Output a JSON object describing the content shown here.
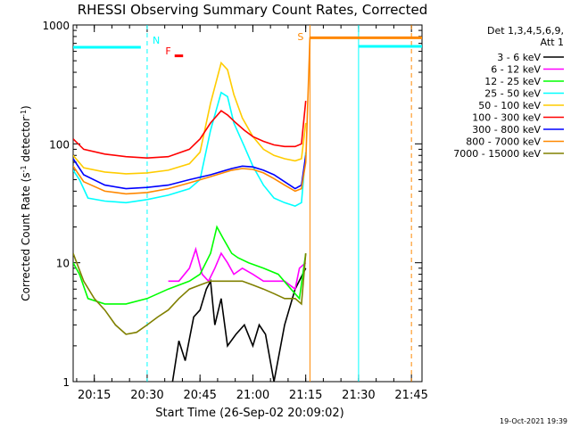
{
  "chart_data": {
    "type": "line",
    "title": "RHESSI Observing Summary Count Rates, Corrected",
    "xlabel": "Start Time (26-Sep-02 20:09:02)",
    "ylabel_main": "Corrected Count Rate (s",
    "ylabel_sup1": "-1",
    "ylabel_mid": " detector",
    "ylabel_sup2": "-1",
    "ylabel_end": ")",
    "yscale": "log",
    "ylim": [
      1,
      1000
    ],
    "xlim": [
      20.15,
      21.8
    ],
    "x_ticks": [
      {
        "label": "20:15",
        "value": 20.25
      },
      {
        "label": "20:30",
        "value": 20.5
      },
      {
        "label": "20:45",
        "value": 20.75
      },
      {
        "label": "21:00",
        "value": 21.0
      },
      {
        "label": "21:15",
        "value": 21.25
      },
      {
        "label": "21:30",
        "value": 21.5
      },
      {
        "label": "21:45",
        "value": 21.75
      }
    ],
    "y_ticks": [
      {
        "label": "1",
        "value": 1
      },
      {
        "label": "10",
        "value": 10
      },
      {
        "label": "100",
        "value": 100
      },
      {
        "label": "1000",
        "value": 1000
      }
    ],
    "legend_header": [
      "Det 1,3,4,5,6,9,",
      "Att 1"
    ],
    "legend_position": "right",
    "series": [
      {
        "name": "3 - 6 keV",
        "color": "#000000",
        "points": [
          [
            20.62,
            1
          ],
          [
            20.65,
            2.2
          ],
          [
            20.68,
            1.5
          ],
          [
            20.72,
            3.5
          ],
          [
            20.75,
            4
          ],
          [
            20.78,
            6
          ],
          [
            20.8,
            7
          ],
          [
            20.82,
            3
          ],
          [
            20.85,
            5
          ],
          [
            20.88,
            2
          ],
          [
            20.92,
            2.5
          ],
          [
            20.96,
            3
          ],
          [
            21.0,
            2
          ],
          [
            21.03,
            3
          ],
          [
            21.06,
            2.5
          ],
          [
            21.1,
            1
          ],
          [
            21.15,
            3
          ],
          [
            21.2,
            6
          ],
          [
            21.25,
            9
          ]
        ]
      },
      {
        "name": "6 - 12 keV",
        "color": "#ff00ff",
        "points": [
          [
            20.6,
            7
          ],
          [
            20.65,
            7
          ],
          [
            20.7,
            9
          ],
          [
            20.73,
            13
          ],
          [
            20.76,
            8
          ],
          [
            20.79,
            7
          ],
          [
            20.82,
            9
          ],
          [
            20.85,
            12
          ],
          [
            20.88,
            10
          ],
          [
            20.91,
            8
          ],
          [
            20.95,
            9
          ],
          [
            21.0,
            8
          ],
          [
            21.05,
            7
          ],
          [
            21.1,
            7
          ],
          [
            21.15,
            7
          ],
          [
            21.2,
            6
          ],
          [
            21.22,
            9
          ],
          [
            21.25,
            10
          ]
        ]
      },
      {
        "name": "12 - 25 keV",
        "color": "#00ff00",
        "points": [
          [
            20.15,
            10
          ],
          [
            20.18,
            8
          ],
          [
            20.22,
            5
          ],
          [
            20.3,
            4.5
          ],
          [
            20.4,
            4.5
          ],
          [
            20.5,
            5
          ],
          [
            20.6,
            6
          ],
          [
            20.7,
            7
          ],
          [
            20.75,
            8
          ],
          [
            20.8,
            12
          ],
          [
            20.83,
            20
          ],
          [
            20.86,
            16
          ],
          [
            20.9,
            12
          ],
          [
            20.93,
            11
          ],
          [
            20.98,
            10
          ],
          [
            21.05,
            9
          ],
          [
            21.12,
            8
          ],
          [
            21.18,
            6
          ],
          [
            21.22,
            5
          ],
          [
            21.25,
            12
          ]
        ]
      },
      {
        "name": "25 - 50 keV",
        "color": "#00ffff",
        "points": [
          [
            20.15,
            60
          ],
          [
            20.18,
            50
          ],
          [
            20.22,
            35
          ],
          [
            20.3,
            33
          ],
          [
            20.4,
            32
          ],
          [
            20.5,
            34
          ],
          [
            20.6,
            37
          ],
          [
            20.7,
            42
          ],
          [
            20.75,
            50
          ],
          [
            20.8,
            130
          ],
          [
            20.85,
            270
          ],
          [
            20.88,
            250
          ],
          [
            20.91,
            150
          ],
          [
            20.96,
            95
          ],
          [
            21.0,
            65
          ],
          [
            21.05,
            45
          ],
          [
            21.1,
            35
          ],
          [
            21.15,
            32
          ],
          [
            21.2,
            30
          ],
          [
            21.23,
            32
          ],
          [
            21.25,
            85
          ]
        ]
      },
      {
        "name": "50 - 100 keV",
        "color": "#ffcc00",
        "points": [
          [
            20.15,
            80
          ],
          [
            20.2,
            63
          ],
          [
            20.3,
            58
          ],
          [
            20.4,
            56
          ],
          [
            20.5,
            57
          ],
          [
            20.6,
            60
          ],
          [
            20.7,
            68
          ],
          [
            20.75,
            85
          ],
          [
            20.8,
            220
          ],
          [
            20.85,
            480
          ],
          [
            20.88,
            420
          ],
          [
            20.91,
            260
          ],
          [
            20.95,
            165
          ],
          [
            21.0,
            115
          ],
          [
            21.05,
            90
          ],
          [
            21.1,
            80
          ],
          [
            21.15,
            75
          ],
          [
            21.2,
            72
          ],
          [
            21.23,
            75
          ],
          [
            21.25,
            150
          ]
        ]
      },
      {
        "name": "100 - 300 keV",
        "color": "#ff0000",
        "points": [
          [
            20.15,
            110
          ],
          [
            20.2,
            90
          ],
          [
            20.3,
            82
          ],
          [
            20.4,
            78
          ],
          [
            20.5,
            76
          ],
          [
            20.6,
            78
          ],
          [
            20.7,
            90
          ],
          [
            20.75,
            110
          ],
          [
            20.8,
            150
          ],
          [
            20.85,
            190
          ],
          [
            20.88,
            175
          ],
          [
            20.92,
            150
          ],
          [
            20.96,
            130
          ],
          [
            21.0,
            115
          ],
          [
            21.05,
            105
          ],
          [
            21.1,
            98
          ],
          [
            21.15,
            95
          ],
          [
            21.2,
            95
          ],
          [
            21.23,
            100
          ],
          [
            21.25,
            230
          ]
        ]
      },
      {
        "name": "300 - 800 keV",
        "color": "#0000ff",
        "points": [
          [
            20.15,
            75
          ],
          [
            20.2,
            55
          ],
          [
            20.3,
            45
          ],
          [
            20.4,
            42
          ],
          [
            20.5,
            43
          ],
          [
            20.6,
            45
          ],
          [
            20.7,
            50
          ],
          [
            20.8,
            55
          ],
          [
            20.9,
            62
          ],
          [
            20.95,
            65
          ],
          [
            21.0,
            64
          ],
          [
            21.05,
            60
          ],
          [
            21.1,
            55
          ],
          [
            21.15,
            48
          ],
          [
            21.2,
            42
          ],
          [
            21.23,
            45
          ],
          [
            21.25,
            80
          ]
        ]
      },
      {
        "name": "800 - 7000 keV",
        "color": "#ff8800",
        "points": [
          [
            20.15,
            65
          ],
          [
            20.2,
            48
          ],
          [
            20.3,
            40
          ],
          [
            20.4,
            38
          ],
          [
            20.5,
            39
          ],
          [
            20.6,
            42
          ],
          [
            20.7,
            47
          ],
          [
            20.8,
            53
          ],
          [
            20.9,
            60
          ],
          [
            20.95,
            62
          ],
          [
            21.0,
            61
          ],
          [
            21.05,
            57
          ],
          [
            21.1,
            51
          ],
          [
            21.15,
            45
          ],
          [
            21.2,
            40
          ],
          [
            21.23,
            42
          ],
          [
            21.25,
            70
          ],
          [
            21.27,
            780
          ],
          [
            21.8,
            780
          ]
        ]
      },
      {
        "name": "7000 - 15000 keV",
        "color": "#808000",
        "points": [
          [
            20.15,
            12
          ],
          [
            20.2,
            7
          ],
          [
            20.25,
            5
          ],
          [
            20.3,
            4
          ],
          [
            20.35,
            3
          ],
          [
            20.4,
            2.5
          ],
          [
            20.45,
            2.6
          ],
          [
            20.5,
            3
          ],
          [
            20.55,
            3.5
          ],
          [
            20.6,
            4
          ],
          [
            20.65,
            5
          ],
          [
            20.7,
            6
          ],
          [
            20.75,
            6.5
          ],
          [
            20.8,
            7
          ],
          [
            20.85,
            7
          ],
          [
            20.9,
            7
          ],
          [
            20.95,
            7
          ],
          [
            21.0,
            6.5
          ],
          [
            21.05,
            6
          ],
          [
            21.1,
            5.5
          ],
          [
            21.15,
            5
          ],
          [
            21.2,
            5
          ],
          [
            21.23,
            4.5
          ],
          [
            21.25,
            12
          ]
        ]
      }
    ],
    "annotations": [
      {
        "label": "N",
        "color": "#00ffff",
        "x": 20.5
      },
      {
        "label": "F",
        "color": "#ff0000",
        "x": 20.62
      },
      {
        "label": "S",
        "color": "#ff8800",
        "x": 21.27
      }
    ],
    "vlines": [
      {
        "x": 20.5,
        "color": "#00ffff",
        "style": "dashed"
      },
      {
        "x": 21.27,
        "color": "#ff8800",
        "style": "solid"
      },
      {
        "x": 21.5,
        "color": "#00ffff",
        "style": "solid"
      },
      {
        "x": 21.75,
        "color": "#ff8800",
        "style": "dashed"
      }
    ],
    "hbars": [
      {
        "x0": 20.15,
        "x1": 20.47,
        "y": 650,
        "color": "#00ffff"
      },
      {
        "x0": 20.63,
        "x1": 20.67,
        "y": 550,
        "color": "#ff0000"
      },
      {
        "x0": 21.27,
        "x1": 21.8,
        "y": 780,
        "color": "#ff8800"
      },
      {
        "x0": 21.5,
        "x1": 21.8,
        "y": 660,
        "color": "#00ffff"
      }
    ]
  },
  "footer": {
    "timestamp": "19-Oct-2021 19:39"
  }
}
